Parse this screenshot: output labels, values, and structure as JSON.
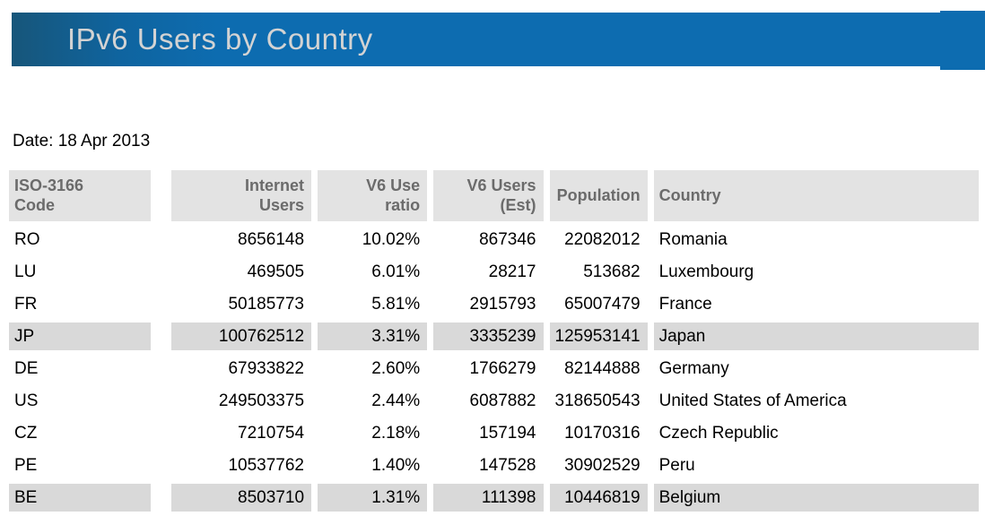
{
  "header": {
    "title": "IPv6 Users by Country"
  },
  "date_line": "Date: 18 Apr 2013",
  "colors": {
    "bar_blue": "#0d6cb0",
    "bar_dark": "#17567a",
    "title_text": "#d3d3d3",
    "header_bg": "#e3e3e3",
    "header_text": "#6b6b6b",
    "row_alt_bg": "#d9d9d9"
  },
  "table": {
    "columns": [
      {
        "key": "code",
        "label": "ISO-3166\nCode"
      },
      {
        "key": "internet_users",
        "label": "Internet\nUsers"
      },
      {
        "key": "v6_ratio",
        "label": "V6 Use\nratio"
      },
      {
        "key": "v6_users",
        "label": "V6 Users\n(Est)"
      },
      {
        "key": "population",
        "label": "Population"
      },
      {
        "key": "country",
        "label": "Country"
      }
    ],
    "rows": [
      {
        "code": "RO",
        "internet_users": "8656148",
        "v6_ratio": "10.02%",
        "v6_users": "867346",
        "population": "22082012",
        "country": "Romania",
        "highlight": false
      },
      {
        "code": "LU",
        "internet_users": "469505",
        "v6_ratio": "6.01%",
        "v6_users": "28217",
        "population": "513682",
        "country": "Luxembourg",
        "highlight": false
      },
      {
        "code": "FR",
        "internet_users": "50185773",
        "v6_ratio": "5.81%",
        "v6_users": "2915793",
        "population": "65007479",
        "country": "France",
        "highlight": false
      },
      {
        "code": "JP",
        "internet_users": "100762512",
        "v6_ratio": "3.31%",
        "v6_users": "3335239",
        "population": "125953141",
        "country": "Japan",
        "highlight": true
      },
      {
        "code": "DE",
        "internet_users": "67933822",
        "v6_ratio": "2.60%",
        "v6_users": "1766279",
        "population": "82144888",
        "country": "Germany",
        "highlight": false
      },
      {
        "code": "US",
        "internet_users": "249503375",
        "v6_ratio": "2.44%",
        "v6_users": "6087882",
        "population": "318650543",
        "country": "United States of America",
        "highlight": false
      },
      {
        "code": "CZ",
        "internet_users": "7210754",
        "v6_ratio": "2.18%",
        "v6_users": "157194",
        "population": "10170316",
        "country": "Czech Republic",
        "highlight": false
      },
      {
        "code": "PE",
        "internet_users": "10537762",
        "v6_ratio": "1.40%",
        "v6_users": "147528",
        "population": "30902529",
        "country": "Peru",
        "highlight": false
      },
      {
        "code": "BE",
        "internet_users": "8503710",
        "v6_ratio": "1.31%",
        "v6_users": "111398",
        "population": "10446819",
        "country": "Belgium",
        "highlight": true
      }
    ]
  }
}
